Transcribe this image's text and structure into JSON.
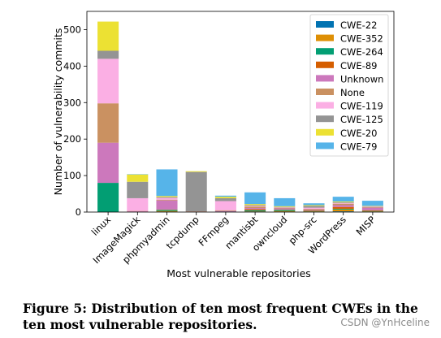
{
  "chart_data": {
    "type": "bar",
    "stacked": true,
    "title": "",
    "xlabel": "Most vulnerable repositories",
    "ylabel": "Number of vulnerability commits",
    "ylim": [
      0,
      550
    ],
    "yticks": [
      0,
      100,
      200,
      300,
      400,
      500
    ],
    "grid": false,
    "legend_position": "top-right",
    "categories": [
      "linux",
      "ImageMagick",
      "phpmyadmin",
      "tcpdump",
      "FFmpeg",
      "mantisbt",
      "owncloud",
      "php-src",
      "WordPress",
      "MISP"
    ],
    "series": [
      {
        "name": "CWE-22",
        "color": "#0173b2",
        "values": [
          0,
          0,
          1,
          0,
          0,
          1,
          1,
          1,
          2,
          1
        ]
      },
      {
        "name": "CWE-352",
        "color": "#de8f05",
        "values": [
          0,
          0,
          2,
          0,
          0,
          1,
          2,
          1,
          5,
          1
        ]
      },
      {
        "name": "CWE-264",
        "color": "#029e73",
        "values": [
          80,
          0,
          3,
          0,
          1,
          3,
          3,
          1,
          2,
          1
        ]
      },
      {
        "name": "CWE-89",
        "color": "#d55e00",
        "values": [
          0,
          0,
          1,
          0,
          0,
          3,
          1,
          2,
          5,
          2
        ]
      },
      {
        "name": "Unknown",
        "color": "#cc78bc",
        "values": [
          110,
          2,
          25,
          1,
          2,
          3,
          3,
          2,
          5,
          7
        ]
      },
      {
        "name": "None",
        "color": "#ca9161",
        "values": [
          108,
          1,
          2,
          1,
          2,
          4,
          2,
          2,
          4,
          2
        ]
      },
      {
        "name": "CWE-119",
        "color": "#fbafe4",
        "values": [
          122,
          35,
          5,
          0,
          25,
          2,
          1,
          3,
          2,
          1
        ]
      },
      {
        "name": "CWE-125",
        "color": "#949494",
        "values": [
          22,
          45,
          2,
          108,
          8,
          2,
          1,
          5,
          2,
          1
        ]
      },
      {
        "name": "CWE-20",
        "color": "#ece133",
        "values": [
          80,
          20,
          3,
          2,
          4,
          3,
          2,
          2,
          2,
          1
        ]
      },
      {
        "name": "CWE-79",
        "color": "#56b4e9",
        "values": [
          0,
          1,
          73,
          0,
          3,
          32,
          22,
          5,
          13,
          14
        ]
      }
    ]
  },
  "caption": "Figure 5: Distribution of ten most frequent CWEs in the ten most vulnerable repositories.",
  "watermark": "CSDN @YnHceline"
}
